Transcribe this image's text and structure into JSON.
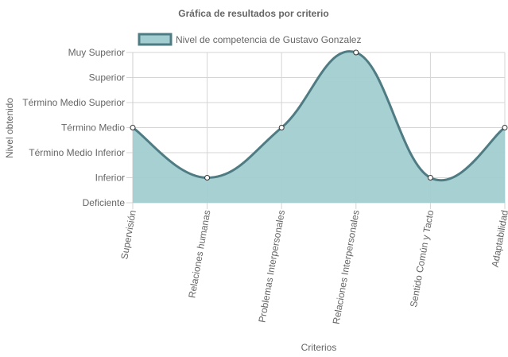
{
  "chart_data": {
    "type": "area",
    "title": "Gráfica de resultados por criterio",
    "xlabel": "Criterios",
    "ylabel": "Nivel obtenido",
    "y_levels": [
      "Deficiente",
      "Inferior",
      "Término Medio Inferior",
      "Término Medio",
      "Término Medio Superior",
      "Superior",
      "Muy Superior"
    ],
    "categories": [
      "Supervisión",
      "Relaciones humanas",
      "Problemas Interpersonales",
      "Relaciones Interpersonales",
      "Sentido Común y Tacto",
      "Adaptabilidad"
    ],
    "series": [
      {
        "name": "Nivel de competencia de Gustavo Gonzalez",
        "values": [
          3,
          1,
          3,
          6,
          1,
          3
        ]
      }
    ],
    "ylim": [
      0,
      6
    ],
    "grid": true,
    "legend": "top",
    "colors": {
      "fill": "#a2cdd1",
      "line": "#4f7b83",
      "point_fill": "#ffffff",
      "grid": "#d5d5d5"
    }
  }
}
